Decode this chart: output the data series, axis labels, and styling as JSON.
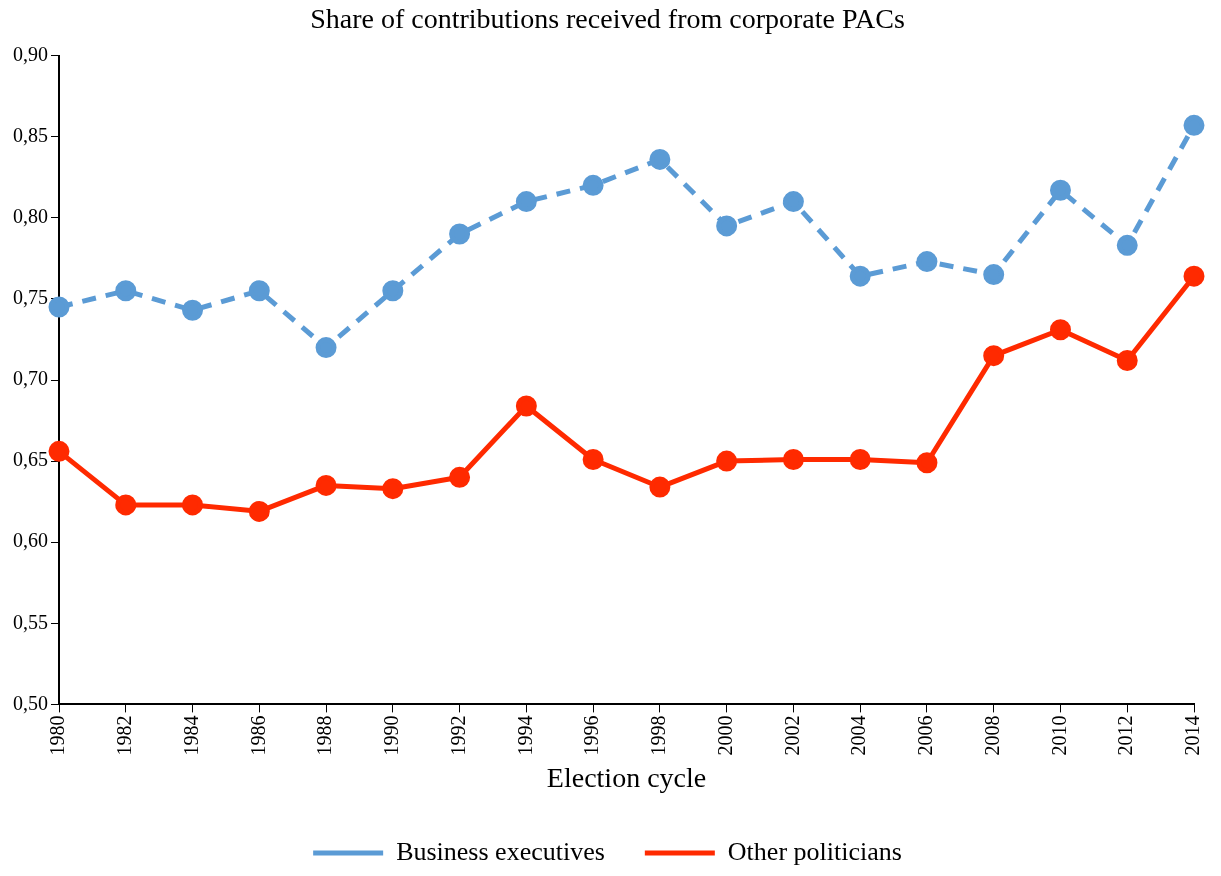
{
  "chart_data": {
    "type": "line",
    "title": "Share of contributions received from corporate PACs",
    "xlabel": "Election cycle",
    "categories": [
      "1980",
      "1982",
      "1984",
      "1986",
      "1988",
      "1990",
      "1992",
      "1994",
      "1996",
      "1998",
      "2000",
      "2002",
      "2004",
      "2006",
      "2008",
      "2010",
      "2012",
      "2014"
    ],
    "series": [
      {
        "name": "Business executives",
        "color": "#5b9bd5",
        "line_style": "dashed",
        "values": [
          0.745,
          0.755,
          0.743,
          0.755,
          0.72,
          0.755,
          0.79,
          0.81,
          0.82,
          0.836,
          0.795,
          0.81,
          0.764,
          0.773,
          0.765,
          0.817,
          0.783,
          0.857
        ]
      },
      {
        "name": "Other politicians",
        "color": "#ff2a00",
        "line_style": "solid",
        "values": [
          0.656,
          0.623,
          0.623,
          0.619,
          0.635,
          0.633,
          0.64,
          0.684,
          0.651,
          0.634,
          0.65,
          0.651,
          0.651,
          0.649,
          0.715,
          0.731,
          0.712,
          0.764
        ]
      }
    ],
    "ylim": [
      0.5,
      0.9
    ],
    "yticks": [
      {
        "value": 0.5,
        "label": "0,50"
      },
      {
        "value": 0.55,
        "label": "0,55"
      },
      {
        "value": 0.6,
        "label": "0,60"
      },
      {
        "value": 0.65,
        "label": "0,65"
      },
      {
        "value": 0.7,
        "label": "0,70"
      },
      {
        "value": 0.75,
        "label": "0,75"
      },
      {
        "value": 0.8,
        "label": "0,80"
      },
      {
        "value": 0.85,
        "label": "0,85"
      },
      {
        "value": 0.9,
        "label": "0,90"
      }
    ],
    "grid": false,
    "legend": "bottom",
    "marker": "circle"
  }
}
